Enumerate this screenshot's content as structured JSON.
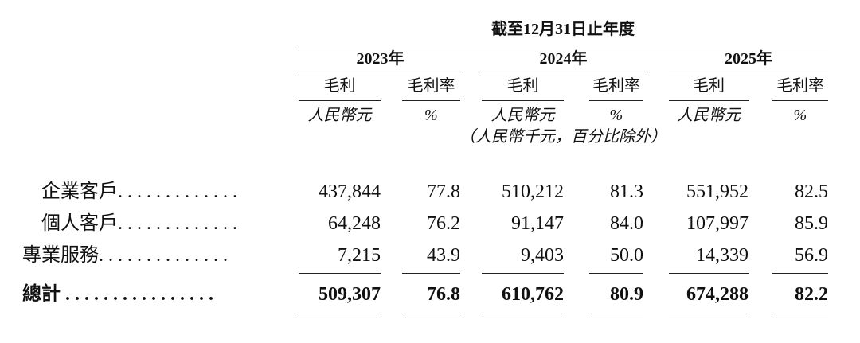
{
  "header": {
    "period": "截至12月31日止年度",
    "years": [
      "2023年",
      "2024年",
      "2025年"
    ],
    "columns": [
      "毛利",
      "毛利率",
      "毛利",
      "毛利率",
      "毛利",
      "毛利率"
    ],
    "units": [
      "人民幣元",
      "%",
      "人民幣元",
      "%",
      "人民幣元",
      "%"
    ],
    "note": "（人民幣千元，百分比除外）"
  },
  "table": {
    "rows": [
      {
        "label": "企業客戶. . . . . . . . . . . . .",
        "cells": [
          "437,844",
          "77.8",
          "510,212",
          "81.3",
          "551,952",
          "82.5"
        ]
      },
      {
        "label": "個人客戶. . . . . . . . . . . . .",
        "cells": [
          "64,248",
          "76.2",
          "91,147",
          "84.0",
          "107,997",
          "85.9"
        ]
      },
      {
        "label": "專業服務. . . . . . . . . . . . . .",
        "cells": [
          "7,215",
          "43.9",
          "9,403",
          "50.0",
          "14,339",
          "56.9"
        ]
      }
    ],
    "total": {
      "label": "總計 . . . . . . . . . . . . . . . .",
      "cells": [
        "509,307",
        "76.8",
        "610,762",
        "80.9",
        "674,288",
        "82.2"
      ]
    }
  }
}
